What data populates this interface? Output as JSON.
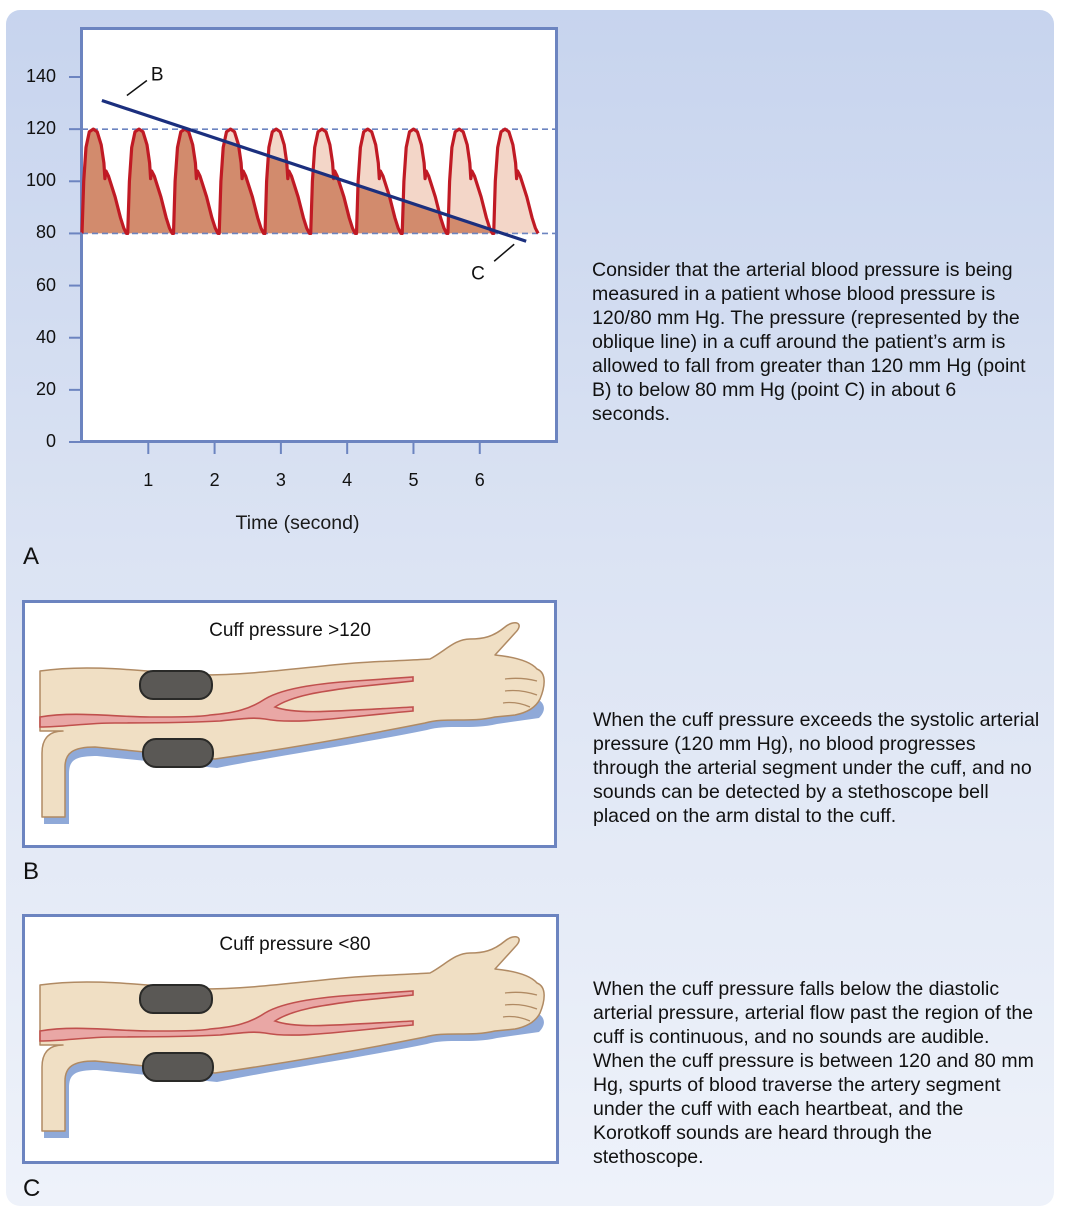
{
  "panel_a": {
    "letter": "A",
    "description": "Consider that the arterial blood pressure is being measured in a patient whose blood pressure is 120/80 mm Hg. The pressure (represented by the oblique line) in a cuff around the patient’s arm is allowed to fall from greater than 120 mm Hg (point B) to below 80 mm Hg (point C) in about 6 seconds."
  },
  "panel_b": {
    "letter": "B",
    "cuff_label": "Cuff pressure >120",
    "description": "When the cuff pressure exceeds the systolic arterial pressure (120 mm Hg), no blood progresses through the arterial segment under the cuff, and no sounds can be detected by a stethoscope bell placed on the arm distal to the cuff."
  },
  "panel_c": {
    "letter": "C",
    "cuff_label": "Cuff pressure <80",
    "description": "When the cuff pressure falls below the diastolic arterial pressure, arterial flow past the region of the cuff is continuous, and no sounds are audible. When the cuff pressure is between 120 and 80 mm Hg, spurts of blood traverse the artery segment under the cuff with each heartbeat, and the Korotkoff sounds are heard through the stethoscope."
  },
  "chart_data": {
    "type": "line",
    "xlabel": "Time (second)",
    "x_ticks": [
      "1",
      "2",
      "3",
      "4",
      "5",
      "6"
    ],
    "y_ticks": [
      "0",
      "20",
      "40",
      "60",
      "80",
      "100",
      "120",
      "140"
    ],
    "xlim": [
      0,
      7.15
    ],
    "ylim": [
      0,
      140
    ],
    "reference_lines": [
      120,
      80
    ],
    "pulse_wave": {
      "systolic": 120,
      "diastolic": 80,
      "beats": 10,
      "first_onset": 0,
      "period": 0.69
    },
    "cuff_line": {
      "start": {
        "x": 0.3,
        "y": 131,
        "label": "B"
      },
      "end": {
        "x": 6.7,
        "y": 77,
        "label": "C"
      }
    },
    "colors": {
      "wave_line": "#c01a24",
      "fill_light": "#f3d6c8",
      "fill_dark": "#d28b6d",
      "cuff_line": "#1b2f7e",
      "reference": "#6c84c0"
    }
  }
}
